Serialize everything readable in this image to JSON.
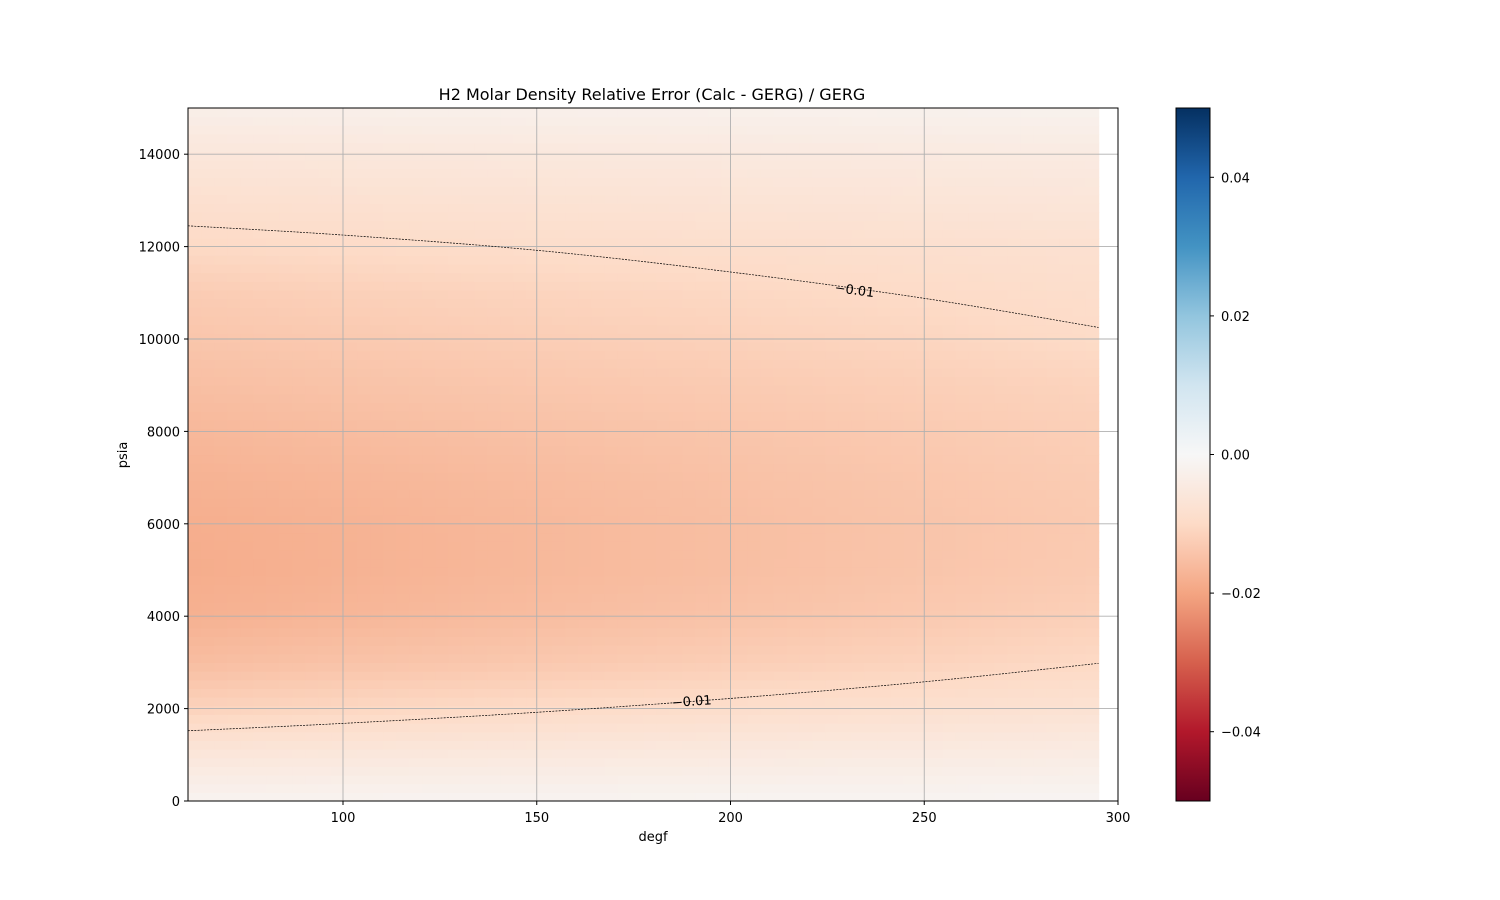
{
  "chart_data": {
    "type": "heatmap",
    "title": "H2 Molar Density Relative Error (Calc - GERG) / GERG",
    "xlabel": "degf",
    "ylabel": "psia",
    "xlim": [
      60,
      300
    ],
    "ylim": [
      0,
      15000
    ],
    "data_extent": {
      "x": [
        60,
        295
      ],
      "y": [
        0,
        15000
      ]
    },
    "grid": true,
    "colormap": "RdBu",
    "clim": [
      -0.05,
      0.05
    ],
    "x_ticks": [
      100,
      150,
      200,
      250,
      300
    ],
    "x_tick_labels": [
      "100",
      "150",
      "200",
      "250",
      "300"
    ],
    "y_ticks": [
      0,
      2000,
      4000,
      6000,
      8000,
      10000,
      12000,
      14000
    ],
    "y_tick_labels": [
      "0",
      "2000",
      "4000",
      "6000",
      "8000",
      "10000",
      "12000",
      "14000"
    ],
    "colorbar_ticks": [
      0.04,
      0.02,
      0.0,
      -0.02,
      -0.04
    ],
    "colorbar_tick_labels": [
      "0.04",
      "0.02",
      "0.00",
      "−0.02",
      "−0.04"
    ],
    "field_samples": {
      "x": [
        60,
        100,
        150,
        200,
        250,
        295
      ],
      "y": [
        0,
        1000,
        2000,
        3000,
        4000,
        5000,
        6000,
        7000,
        8000,
        9000,
        10000,
        11000,
        12000,
        13000,
        14000,
        15000
      ],
      "z": [
        [
          -0.0015,
          -0.0014,
          -0.0013,
          -0.0012,
          -0.0011,
          -0.001
        ],
        [
          -0.006,
          -0.0056,
          -0.0052,
          -0.0048,
          -0.0044,
          -0.004
        ],
        [
          -0.0115,
          -0.0107,
          -0.0098,
          -0.009,
          -0.0082,
          -0.0075
        ],
        [
          -0.0155,
          -0.0145,
          -0.0135,
          -0.0124,
          -0.0114,
          -0.0102
        ],
        [
          -0.0178,
          -0.0168,
          -0.0156,
          -0.0145,
          -0.0133,
          -0.012
        ],
        [
          -0.0185,
          -0.0176,
          -0.0164,
          -0.0153,
          -0.0141,
          -0.013
        ],
        [
          -0.0183,
          -0.0175,
          -0.0164,
          -0.0153,
          -0.0142,
          -0.0132
        ],
        [
          -0.0175,
          -0.0168,
          -0.0158,
          -0.0148,
          -0.0138,
          -0.0128
        ],
        [
          -0.0165,
          -0.0157,
          -0.0148,
          -0.014,
          -0.0131,
          -0.0122
        ],
        [
          -0.0152,
          -0.0145,
          -0.0137,
          -0.013,
          -0.0122,
          -0.0114
        ],
        [
          -0.014,
          -0.0133,
          -0.0125,
          -0.0118,
          -0.011,
          -0.0098
        ],
        [
          -0.0128,
          -0.012,
          -0.0113,
          -0.0106,
          -0.0098,
          -0.009
        ],
        [
          -0.0102,
          -0.0098,
          -0.0092,
          -0.0088,
          -0.0084,
          -0.008
        ],
        [
          -0.0082,
          -0.0078,
          -0.0074,
          -0.007,
          -0.0066,
          -0.0062
        ],
        [
          -0.006,
          -0.0057,
          -0.0054,
          -0.0051,
          -0.0048,
          -0.0045
        ],
        [
          -0.003,
          -0.0028,
          -0.0026,
          -0.0024,
          -0.0022,
          -0.002
        ]
      ]
    },
    "contours": [
      {
        "level": -0.01,
        "label": "−0.01",
        "label_at": [
          232,
          11050
        ],
        "points": [
          [
            60,
            12450
          ],
          [
            100,
            12250
          ],
          [
            150,
            11920
          ],
          [
            200,
            11450
          ],
          [
            250,
            10880
          ],
          [
            295,
            10250
          ]
        ]
      },
      {
        "level": -0.01,
        "label": "−0.01",
        "label_at": [
          190,
          2150
        ],
        "points": [
          [
            60,
            1520
          ],
          [
            100,
            1680
          ],
          [
            150,
            1920
          ],
          [
            200,
            2220
          ],
          [
            250,
            2580
          ],
          [
            295,
            2980
          ]
        ]
      }
    ]
  }
}
